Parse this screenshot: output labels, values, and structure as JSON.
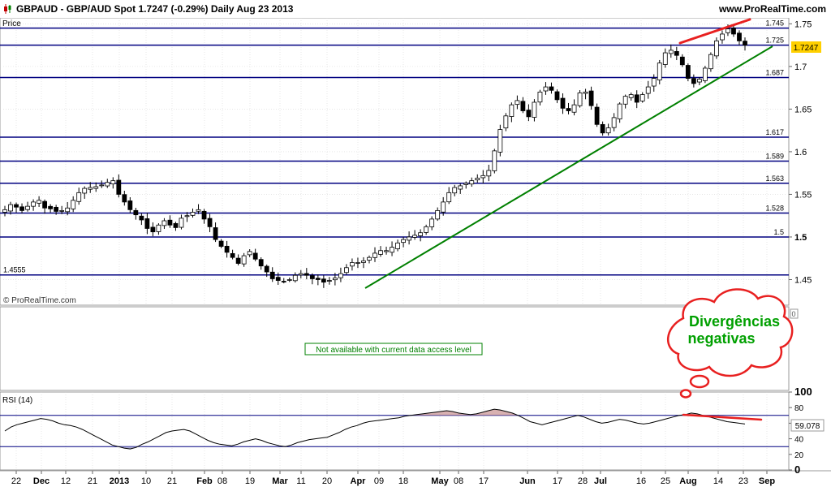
{
  "header": {
    "title": "GBPAUD - GBP/AUD Spot    1.7247 (-0.29%)    Daily  Aug 23 2013",
    "site": "www.ProRealTime.com"
  },
  "price_panel": {
    "label": "Price",
    "watermark": "© ProRealTime.com",
    "last_price": "1.7247"
  },
  "indicator_panel": {
    "message": "Not available with current data access level",
    "axis_value": "0"
  },
  "rsi_panel": {
    "label": "RSI (14)",
    "last_value": "59.078"
  },
  "annotation": {
    "line1": "Divergências",
    "line2": "negativas"
  },
  "colors": {
    "level_line": "#000080",
    "trend_line": "#008000",
    "divergence": "#e82020",
    "badge": "#ffd000",
    "grid": "#d8d8d8"
  },
  "chart_data": [
    {
      "type": "line",
      "title": "Price",
      "x_ticks": [
        "22",
        "Dec",
        "12",
        "21",
        "2013",
        "10",
        "21",
        "Feb",
        "08",
        "19",
        "Mar",
        "11",
        "20",
        "Apr",
        "09",
        "18",
        "May",
        "08",
        "17",
        "Jun",
        "17",
        "28",
        "Jul",
        "16",
        "25",
        "Aug",
        "14",
        "23",
        "Sep"
      ],
      "y_ticks": [
        "1.45",
        "1.5",
        "1.55",
        "1.6",
        "1.65",
        "1.7",
        "1.75"
      ],
      "ylim": [
        1.42,
        1.757
      ],
      "levels": [
        {
          "label": "1.745",
          "value": 1.745
        },
        {
          "label": "1.725",
          "value": 1.725
        },
        {
          "label": "1.687",
          "value": 1.687
        },
        {
          "label": "1.617",
          "value": 1.617
        },
        {
          "label": "1.589",
          "value": 1.589
        },
        {
          "label": "1.563",
          "value": 1.563
        },
        {
          "label": "1.528",
          "value": 1.528
        },
        {
          "label": "1.5",
          "value": 1.5
        },
        {
          "label": "1.4555",
          "value": 1.4555
        }
      ],
      "series": [
        {
          "values": [
            1.532,
            1.538,
            1.535,
            1.531,
            1.536,
            1.541,
            1.543,
            1.534,
            1.533,
            1.53,
            1.531,
            1.534,
            1.543,
            1.552,
            1.557,
            1.558,
            1.559,
            1.561,
            1.564,
            1.566,
            1.55,
            1.541,
            1.532,
            1.526,
            1.52,
            1.51,
            1.506,
            1.514,
            1.519,
            1.514,
            1.511,
            1.522,
            1.525,
            1.529,
            1.532,
            1.521,
            1.512,
            1.497,
            1.489,
            1.482,
            1.476,
            1.469,
            1.478,
            1.483,
            1.474,
            1.466,
            1.459,
            1.451,
            1.449,
            1.448,
            1.45,
            1.455,
            1.457,
            1.455,
            1.451,
            1.45,
            1.447,
            1.449,
            1.452,
            1.457,
            1.464,
            1.47,
            1.47,
            1.472,
            1.476,
            1.481,
            1.484,
            1.484,
            1.488,
            1.493,
            1.497,
            1.5,
            1.502,
            1.505,
            1.512,
            1.521,
            1.531,
            1.541,
            1.552,
            1.558,
            1.56,
            1.563,
            1.566,
            1.569,
            1.572,
            1.578,
            1.601,
            1.626,
            1.642,
            1.655,
            1.66,
            1.648,
            1.641,
            1.658,
            1.67,
            1.676,
            1.672,
            1.661,
            1.651,
            1.648,
            1.655,
            1.669,
            1.67,
            1.654,
            1.632,
            1.622,
            1.628,
            1.64,
            1.656,
            1.665,
            1.667,
            1.658,
            1.667,
            1.676,
            1.686,
            1.704,
            1.716,
            1.719,
            1.713,
            1.702,
            1.686,
            1.68,
            1.685,
            1.698,
            1.714,
            1.73,
            1.738,
            1.744,
            1.738,
            1.73,
            1.725
          ]
        }
      ]
    },
    {
      "type": "line",
      "title": "RSI (14)",
      "y_ticks": [
        "100",
        "80",
        "60",
        "40",
        "20",
        "0"
      ],
      "ylim": [
        0,
        100
      ],
      "levels": [
        70,
        30
      ],
      "series": [
        {
          "values": [
            50,
            55,
            58,
            60,
            62,
            64,
            66,
            65,
            63,
            60,
            58,
            57,
            55,
            52,
            48,
            44,
            40,
            36,
            32,
            30,
            28,
            27,
            29,
            33,
            36,
            40,
            44,
            48,
            50,
            51,
            52,
            50,
            46,
            42,
            38,
            35,
            33,
            32,
            31,
            33,
            36,
            38,
            40,
            38,
            35,
            33,
            31,
            30,
            32,
            35,
            37,
            39,
            40,
            41,
            42,
            45,
            48,
            52,
            55,
            57,
            60,
            62,
            63,
            64,
            65,
            66,
            67,
            69,
            70,
            71,
            72,
            73,
            74,
            75,
            76,
            75,
            73,
            72,
            71,
            72,
            74,
            76,
            78,
            77,
            75,
            73,
            70,
            66,
            62,
            60,
            58,
            60,
            62,
            64,
            66,
            68,
            70,
            68,
            65,
            62,
            60,
            61,
            63,
            65,
            64,
            62,
            60,
            59,
            60,
            62,
            64,
            66,
            68,
            70,
            71,
            73,
            72,
            70,
            68,
            66,
            64,
            62,
            61,
            60,
            59
          ]
        }
      ]
    }
  ]
}
